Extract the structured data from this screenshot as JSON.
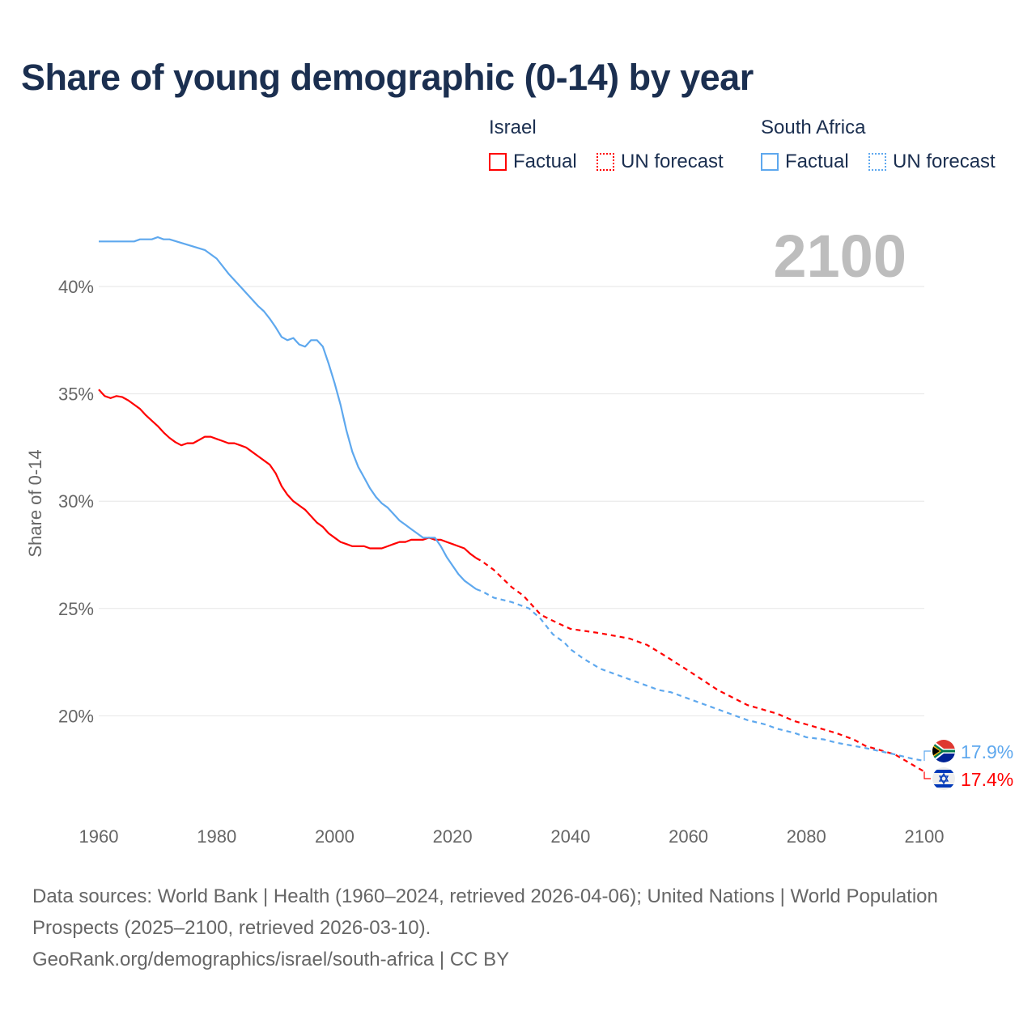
{
  "title": "Share of young demographic (0-14) by year",
  "legend": {
    "groups": [
      {
        "name": "Israel",
        "items": [
          {
            "label": "Factual",
            "style": "solid"
          },
          {
            "label": "UN forecast",
            "style": "dotted"
          }
        ],
        "color": "#ff0000"
      },
      {
        "name": "South Africa",
        "items": [
          {
            "label": "Factual",
            "style": "solid"
          },
          {
            "label": "UN forecast",
            "style": "dotted"
          }
        ],
        "color": "#5ea8ee"
      }
    ]
  },
  "year_label": "2100",
  "sources": {
    "line1": "Data sources: World Bank | Health (1960–2024, retrieved 2026-04-06); United Nations | World Population Prospects (2025–2100, retrieved 2026-03-10).",
    "line2": "GeoRank.org/demographics/israel/south-africa | CC BY"
  },
  "chart_data": {
    "type": "line",
    "title": "Share of young demographic (0-14) by year",
    "xlabel": "",
    "ylabel": "Share of 0-14",
    "xlim": [
      1960,
      2100
    ],
    "ylim": [
      16,
      43
    ],
    "xticks": [
      1960,
      1980,
      2000,
      2020,
      2040,
      2060,
      2080,
      2100
    ],
    "xtick_labels": [
      "1960",
      "1980",
      "2000",
      "2020",
      "2040",
      "2060",
      "2080",
      "2100"
    ],
    "yticks": [
      20,
      25,
      30,
      35,
      40
    ],
    "ytick_labels": [
      "20%",
      "25%",
      "30%",
      "35%",
      "40%"
    ],
    "grid": true,
    "series": [
      {
        "name": "Israel",
        "color": "#ff0000",
        "end_label": "17.4%",
        "factual": [
          [
            1960,
            35.2
          ],
          [
            1961,
            34.9
          ],
          [
            1962,
            34.8
          ],
          [
            1963,
            34.9
          ],
          [
            1964,
            34.85
          ],
          [
            1965,
            34.7
          ],
          [
            1966,
            34.5
          ],
          [
            1967,
            34.3
          ],
          [
            1968,
            34.0
          ],
          [
            1969,
            33.75
          ],
          [
            1970,
            33.5
          ],
          [
            1971,
            33.2
          ],
          [
            1972,
            32.95
          ],
          [
            1973,
            32.75
          ],
          [
            1974,
            32.6
          ],
          [
            1975,
            32.7
          ],
          [
            1976,
            32.7
          ],
          [
            1977,
            32.85
          ],
          [
            1978,
            33.0
          ],
          [
            1979,
            33.0
          ],
          [
            1980,
            32.9
          ],
          [
            1981,
            32.8
          ],
          [
            1982,
            32.7
          ],
          [
            1983,
            32.7
          ],
          [
            1984,
            32.6
          ],
          [
            1985,
            32.5
          ],
          [
            1986,
            32.3
          ],
          [
            1987,
            32.1
          ],
          [
            1988,
            31.9
          ],
          [
            1989,
            31.7
          ],
          [
            1990,
            31.3
          ],
          [
            1991,
            30.7
          ],
          [
            1992,
            30.3
          ],
          [
            1993,
            30.0
          ],
          [
            1994,
            29.8
          ],
          [
            1995,
            29.6
          ],
          [
            1996,
            29.3
          ],
          [
            1997,
            29.0
          ],
          [
            1998,
            28.8
          ],
          [
            1999,
            28.5
          ],
          [
            2000,
            28.3
          ],
          [
            2001,
            28.1
          ],
          [
            2002,
            28.0
          ],
          [
            2003,
            27.9
          ],
          [
            2004,
            27.9
          ],
          [
            2005,
            27.9
          ],
          [
            2006,
            27.8
          ],
          [
            2007,
            27.8
          ],
          [
            2008,
            27.8
          ],
          [
            2009,
            27.9
          ],
          [
            2010,
            28.0
          ],
          [
            2011,
            28.1
          ],
          [
            2012,
            28.1
          ],
          [
            2013,
            28.2
          ],
          [
            2014,
            28.2
          ],
          [
            2015,
            28.2
          ],
          [
            2016,
            28.3
          ],
          [
            2017,
            28.2
          ],
          [
            2018,
            28.2
          ],
          [
            2019,
            28.1
          ],
          [
            2020,
            28.0
          ],
          [
            2021,
            27.9
          ],
          [
            2022,
            27.8
          ],
          [
            2023,
            27.55
          ],
          [
            2024,
            27.35
          ]
        ],
        "forecast": [
          [
            2024,
            27.35
          ],
          [
            2025,
            27.2
          ],
          [
            2027,
            26.8
          ],
          [
            2030,
            26.0
          ],
          [
            2032,
            25.6
          ],
          [
            2035,
            24.7
          ],
          [
            2038,
            24.3
          ],
          [
            2040,
            24.05
          ],
          [
            2045,
            23.85
          ],
          [
            2050,
            23.6
          ],
          [
            2053,
            23.3
          ],
          [
            2056,
            22.8
          ],
          [
            2060,
            22.1
          ],
          [
            2065,
            21.2
          ],
          [
            2070,
            20.5
          ],
          [
            2075,
            20.1
          ],
          [
            2078,
            19.75
          ],
          [
            2080,
            19.6
          ],
          [
            2085,
            19.2
          ],
          [
            2088,
            18.9
          ],
          [
            2090,
            18.6
          ],
          [
            2095,
            18.2
          ],
          [
            2100,
            17.4
          ]
        ]
      },
      {
        "name": "South Africa",
        "color": "#5ea8ee",
        "end_label": "17.9%",
        "factual": [
          [
            1960,
            42.1
          ],
          [
            1966,
            42.1
          ],
          [
            1967,
            42.2
          ],
          [
            1969,
            42.2
          ],
          [
            1970,
            42.3
          ],
          [
            1971,
            42.2
          ],
          [
            1972,
            42.2
          ],
          [
            1975,
            41.95
          ],
          [
            1978,
            41.7
          ],
          [
            1980,
            41.3
          ],
          [
            1982,
            40.6
          ],
          [
            1984,
            40.0
          ],
          [
            1986,
            39.4
          ],
          [
            1987,
            39.1
          ],
          [
            1988,
            38.85
          ],
          [
            1989,
            38.5
          ],
          [
            1990,
            38.1
          ],
          [
            1991,
            37.65
          ],
          [
            1992,
            37.5
          ],
          [
            1993,
            37.6
          ],
          [
            1994,
            37.3
          ],
          [
            1995,
            37.2
          ],
          [
            1996,
            37.5
          ],
          [
            1997,
            37.5
          ],
          [
            1998,
            37.2
          ],
          [
            1999,
            36.4
          ],
          [
            2000,
            35.5
          ],
          [
            2001,
            34.5
          ],
          [
            2002,
            33.3
          ],
          [
            2003,
            32.3
          ],
          [
            2004,
            31.6
          ],
          [
            2005,
            31.1
          ],
          [
            2006,
            30.6
          ],
          [
            2007,
            30.2
          ],
          [
            2008,
            29.9
          ],
          [
            2009,
            29.7
          ],
          [
            2010,
            29.4
          ],
          [
            2011,
            29.1
          ],
          [
            2012,
            28.9
          ],
          [
            2013,
            28.7
          ],
          [
            2014,
            28.5
          ],
          [
            2015,
            28.3
          ],
          [
            2016,
            28.3
          ],
          [
            2017,
            28.3
          ],
          [
            2018,
            27.9
          ],
          [
            2019,
            27.4
          ],
          [
            2020,
            27.0
          ],
          [
            2021,
            26.6
          ],
          [
            2022,
            26.3
          ],
          [
            2023,
            26.1
          ],
          [
            2024,
            25.9
          ]
        ],
        "forecast": [
          [
            2024,
            25.9
          ],
          [
            2025,
            25.8
          ],
          [
            2027,
            25.5
          ],
          [
            2030,
            25.3
          ],
          [
            2033,
            25.0
          ],
          [
            2035,
            24.5
          ],
          [
            2037,
            23.8
          ],
          [
            2039,
            23.4
          ],
          [
            2040,
            23.1
          ],
          [
            2042,
            22.7
          ],
          [
            2045,
            22.2
          ],
          [
            2050,
            21.7
          ],
          [
            2055,
            21.2
          ],
          [
            2057,
            21.1
          ],
          [
            2060,
            20.8
          ],
          [
            2065,
            20.3
          ],
          [
            2070,
            19.8
          ],
          [
            2073,
            19.6
          ],
          [
            2075,
            19.4
          ],
          [
            2078,
            19.2
          ],
          [
            2080,
            19.0
          ],
          [
            2083,
            18.9
          ],
          [
            2085,
            18.75
          ],
          [
            2090,
            18.5
          ],
          [
            2095,
            18.2
          ],
          [
            2098,
            18.0
          ],
          [
            2100,
            17.9
          ]
        ]
      }
    ]
  }
}
